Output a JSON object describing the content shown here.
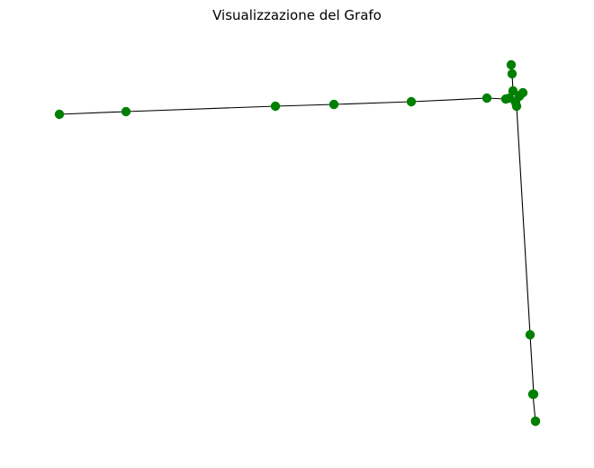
{
  "figure": {
    "title": "Visualizzazione del Grafo"
  },
  "style": {
    "node_color": "#008000",
    "edge_color": "#000000",
    "background": "#ffffff"
  },
  "graph": {
    "nodes": [
      {
        "id": "n0",
        "icon": "node-marker"
      },
      {
        "id": "n1",
        "icon": "node-marker"
      },
      {
        "id": "n2",
        "icon": "node-marker"
      },
      {
        "id": "n3",
        "icon": "node-marker"
      },
      {
        "id": "n4",
        "icon": "node-marker"
      },
      {
        "id": "n5",
        "icon": "node-marker"
      },
      {
        "id": "n6",
        "icon": "node-marker"
      },
      {
        "id": "n7",
        "icon": "node-marker"
      },
      {
        "id": "n8",
        "icon": "node-marker"
      },
      {
        "id": "n9",
        "icon": "node-marker"
      },
      {
        "id": "n10",
        "icon": "node-marker"
      },
      {
        "id": "n11",
        "icon": "node-marker"
      },
      {
        "id": "n12",
        "icon": "node-marker"
      },
      {
        "id": "n13",
        "icon": "node-marker"
      },
      {
        "id": "n14",
        "icon": "node-marker"
      },
      {
        "id": "n15",
        "icon": "node-marker"
      },
      {
        "id": "n16",
        "icon": "node-marker"
      },
      {
        "id": "n17",
        "icon": "node-marker"
      },
      {
        "id": "n18",
        "icon": "node-marker"
      },
      {
        "id": "n19",
        "icon": "node-marker"
      }
    ],
    "edges": [
      [
        "n0",
        "n1"
      ],
      [
        "n1",
        "n2"
      ],
      [
        "n2",
        "n3"
      ],
      [
        "n3",
        "n4"
      ],
      [
        "n4",
        "n5"
      ],
      [
        "n5",
        "n8"
      ],
      [
        "n6",
        "n7"
      ],
      [
        "n7",
        "n9"
      ],
      [
        "n8",
        "n9"
      ],
      [
        "n9",
        "n10"
      ],
      [
        "n8",
        "n12"
      ],
      [
        "n12",
        "n11"
      ],
      [
        "n11",
        "n13"
      ],
      [
        "n12",
        "n13"
      ],
      [
        "n13",
        "n14"
      ],
      [
        "n14",
        "n15"
      ],
      [
        "n15",
        "n16"
      ],
      [
        "n16",
        "n17"
      ],
      [
        "n17",
        "n18"
      ],
      [
        "n18",
        "n19"
      ]
    ]
  }
}
